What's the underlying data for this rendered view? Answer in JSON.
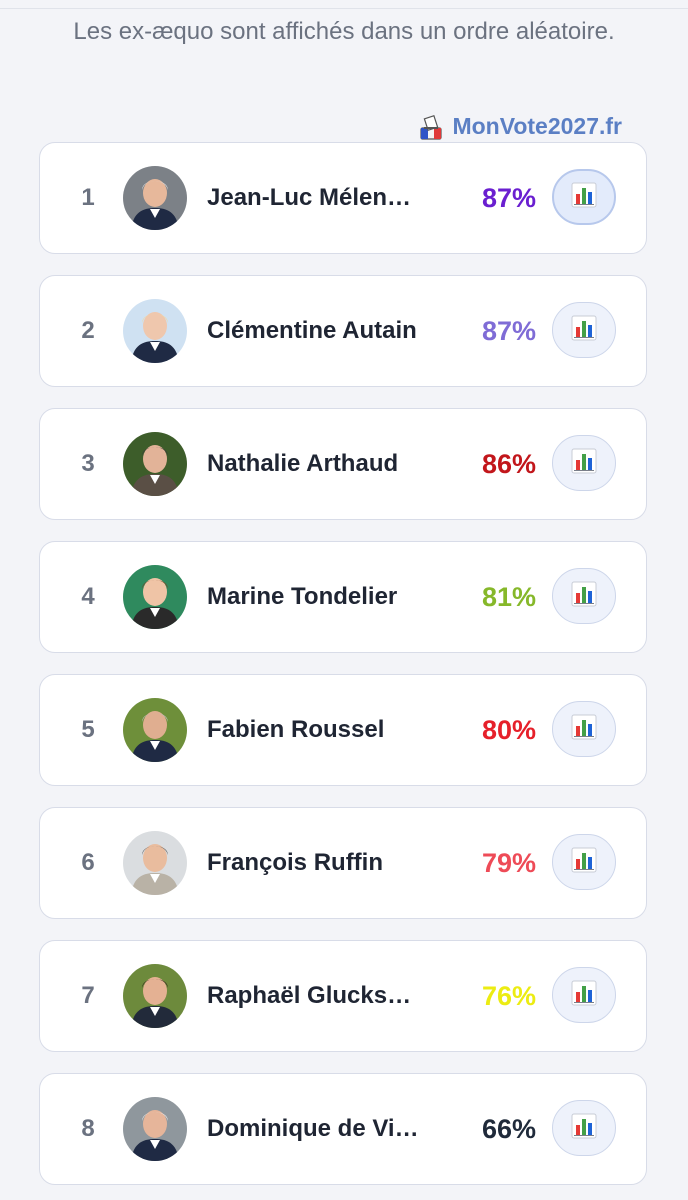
{
  "header": {
    "note": "Les ex-æquo sont affichés dans un ordre aléatoire.",
    "brand": "MonVote2027.fr"
  },
  "results": [
    {
      "rank": "1",
      "name": "Jean-Luc Mélen…",
      "score": "87%",
      "score_color": "#6a1fd0",
      "avatar_bg": "#7c8187",
      "hair": "#d9d9d9",
      "skin": "#e7b89b",
      "suit": "#1f2a44"
    },
    {
      "rank": "2",
      "name": "Clémentine Autain",
      "score": "87%",
      "score_color": "#7f6cd6",
      "avatar_bg": "#cfe1f2",
      "hair": "#f0d8a6",
      "skin": "#efc7ad",
      "suit": "#1f2a44"
    },
    {
      "rank": "3",
      "name": "Nathalie Arthaud",
      "score": "86%",
      "score_color": "#c2161b",
      "avatar_bg": "#3d5d2a",
      "hair": "#3a3a3a",
      "skin": "#e2b398",
      "suit": "#5a4f45"
    },
    {
      "rank": "4",
      "name": "Marine Tondelier",
      "score": "81%",
      "score_color": "#86b82a",
      "avatar_bg": "#2f8a5e",
      "hair": "#7a4325",
      "skin": "#efc4a6",
      "suit": "#2a2a2a"
    },
    {
      "rank": "5",
      "name": "Fabien Roussel",
      "score": "80%",
      "score_color": "#e6202a",
      "avatar_bg": "#6e8f3a",
      "hair": "#bdbdbd",
      "skin": "#e0ae90",
      "suit": "#1f2a44"
    },
    {
      "rank": "6",
      "name": "François Ruffin",
      "score": "79%",
      "score_color": "#ee4b57",
      "avatar_bg": "#dadde0",
      "hair": "#6d6d6d",
      "skin": "#e9bc9e",
      "suit": "#b9b2a6"
    },
    {
      "rank": "7",
      "name": "Raphaël Glucks…",
      "score": "76%",
      "score_color": "#ecec12",
      "avatar_bg": "#6d8a3c",
      "hair": "#3b2c22",
      "skin": "#e4b193",
      "suit": "#222a3a"
    },
    {
      "rank": "8",
      "name": "Dominique de Vil…",
      "score": "66%",
      "score_color": "#1f2a3a",
      "avatar_bg": "#8f979d",
      "hair": "#e6e6e6",
      "skin": "#e6b59a",
      "suit": "#1f2a44"
    }
  ],
  "icons": {
    "brand": "ballot-box-icon",
    "stats": "bar-chart-icon"
  }
}
